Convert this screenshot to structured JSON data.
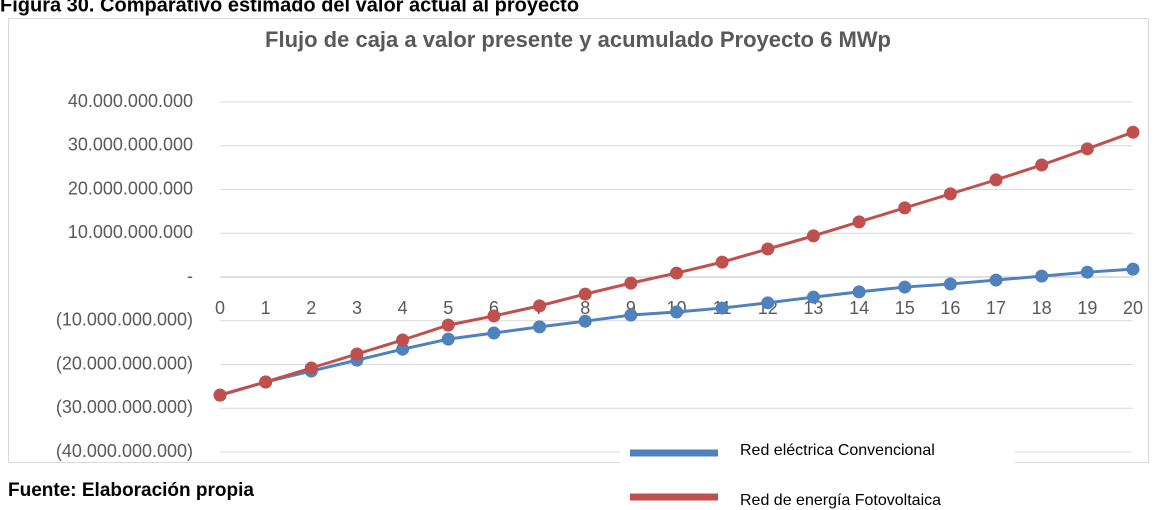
{
  "heading": "Figura 30. Comparativo estimado del valor actual al proyecto",
  "source": "Fuente: Elaboración propia",
  "chart_data": {
    "type": "line",
    "title": "Flujo de caja a valor presente y acumulado Proyecto 6 MWp",
    "categories": [
      "0",
      "1",
      "2",
      "3",
      "4",
      "5",
      "6",
      "7",
      "8",
      "9",
      "10",
      "11",
      "12",
      "13",
      "14",
      "15",
      "16",
      "17",
      "18",
      "19",
      "20"
    ],
    "series": [
      {
        "name": "Red eléctrica Convencional",
        "color": "#4f81bd",
        "values": [
          -27000000000,
          -24000000000,
          -21500000000,
          -19000000000,
          -16500000000,
          -14200000000,
          -12800000000,
          -11400000000,
          -10100000000,
          -8700000000,
          -8000000000,
          -7100000000,
          -5900000000,
          -4600000000,
          -3400000000,
          -2300000000,
          -1600000000,
          -700000000,
          200000000,
          1100000000,
          1800000000
        ]
      },
      {
        "name": "Red de energía Fotovoltaica",
        "color": "#c0504d",
        "values": [
          -27000000000,
          -24000000000,
          -20800000000,
          -17600000000,
          -14400000000,
          -11000000000,
          -8900000000,
          -6600000000,
          -3900000000,
          -1400000000,
          900000000,
          3400000000,
          6400000000,
          9400000000,
          12600000000,
          15800000000,
          19000000000,
          22200000000,
          25600000000,
          29300000000,
          33100000000
        ]
      }
    ],
    "ylim": [
      -40000000000,
      40000000000
    ],
    "yticks": [
      {
        "value": -40000000000,
        "label": "(40.000.000.000)"
      },
      {
        "value": -30000000000,
        "label": "(30.000.000.000)"
      },
      {
        "value": -20000000000,
        "label": "(20.000.000.000)"
      },
      {
        "value": -10000000000,
        "label": "(10.000.000.000)"
      },
      {
        "value": 0,
        "label": "-"
      },
      {
        "value": 10000000000,
        "label": "10.000.000.000"
      },
      {
        "value": 20000000000,
        "label": "20.000.000.000"
      },
      {
        "value": 30000000000,
        "label": "30.000.000.000"
      },
      {
        "value": 40000000000,
        "label": "40.000.000.000"
      }
    ],
    "grid": true,
    "legend": "bottom-right"
  }
}
